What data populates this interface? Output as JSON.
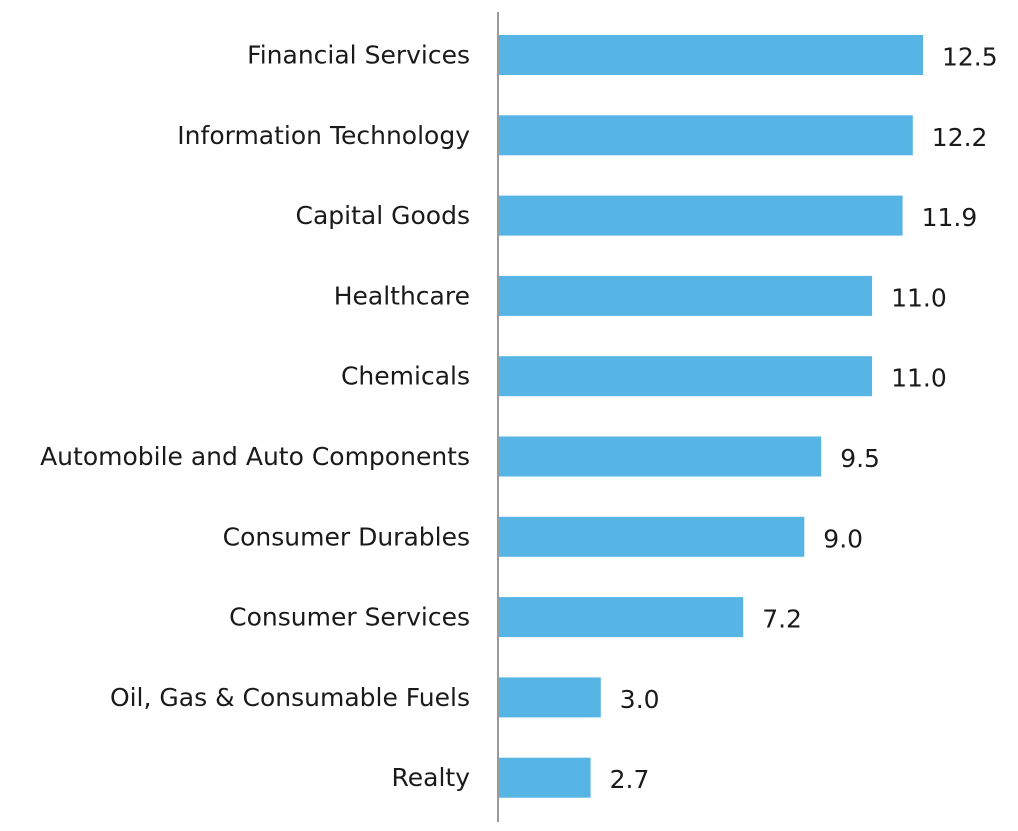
{
  "chart_data": {
    "type": "bar",
    "orientation": "horizontal",
    "categories": [
      "Financial Services",
      "Information Technology",
      "Capital Goods",
      "Healthcare",
      "Chemicals",
      "Automobile and Auto Components",
      "Consumer Durables",
      "Consumer Services",
      "Oil, Gas & Consumable Fuels",
      "Realty"
    ],
    "values": [
      12.5,
      12.2,
      11.9,
      11.0,
      11.0,
      9.5,
      9.0,
      7.2,
      3.0,
      2.7
    ],
    "value_labels": [
      "12.5",
      "12.2",
      "11.9",
      "11.0",
      "11.0",
      "9.5",
      "9.0",
      "7.2",
      "3.0",
      "2.7"
    ],
    "title": "",
    "xlabel": "",
    "ylabel": "",
    "xlim": [
      0,
      15
    ],
    "grid": false,
    "legend": "none",
    "bar_color": "#56B5E5",
    "axis_color": "#9a9a9a",
    "text_color": "#1a1a1a"
  }
}
